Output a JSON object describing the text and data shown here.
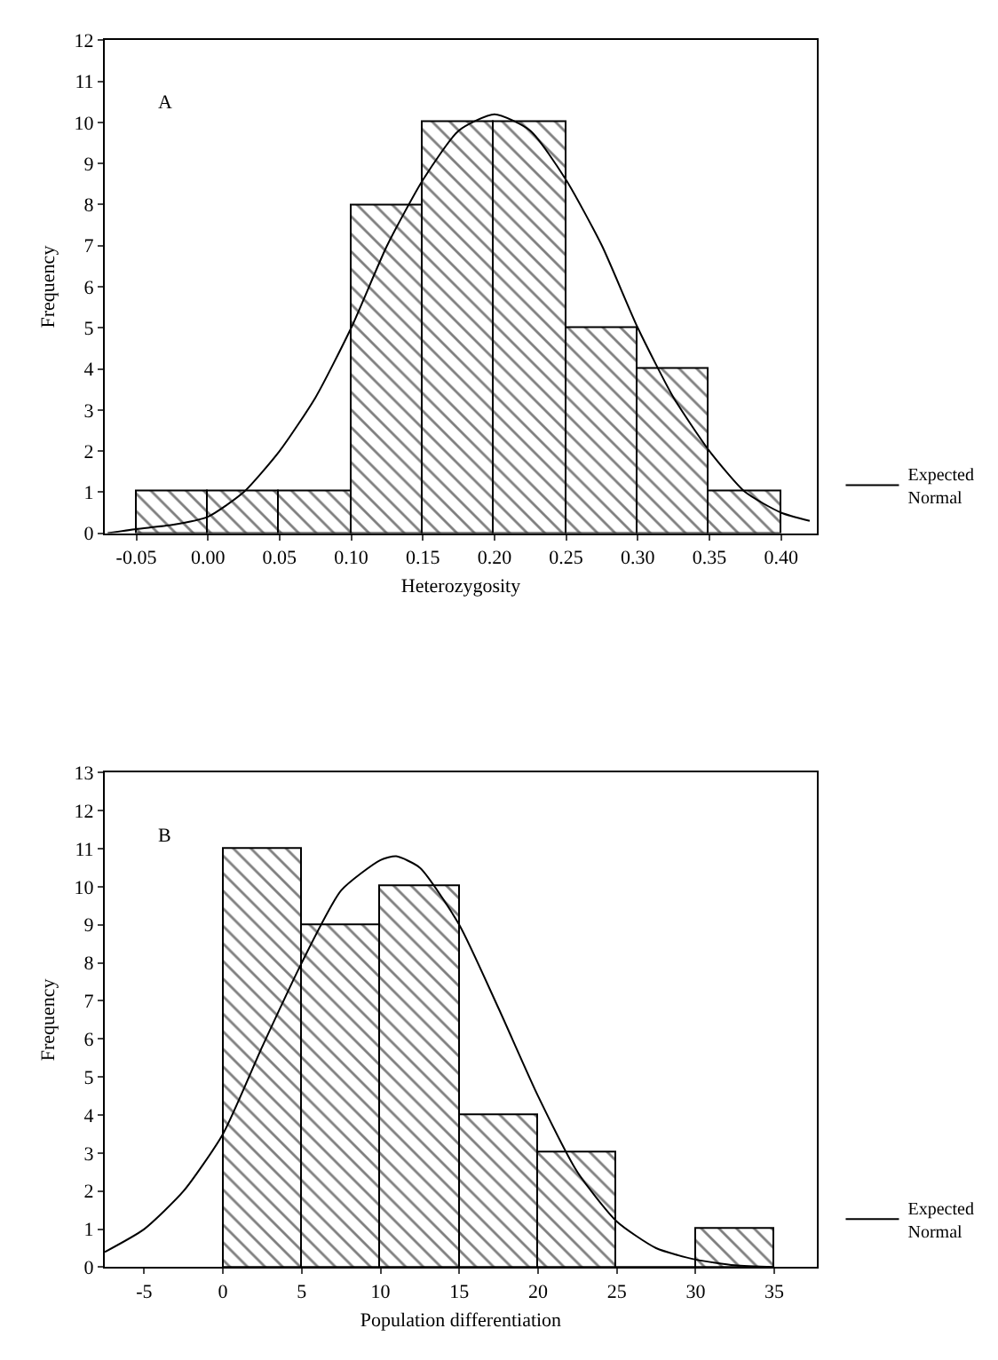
{
  "chart_data": [
    {
      "type": "histogram",
      "annotations": [
        "A"
      ],
      "xlabel": "Heterozygosity",
      "ylabel": "Frequency",
      "bins": [
        -0.05,
        0.0,
        0.05,
        0.1,
        0.15,
        0.2,
        0.25,
        0.3,
        0.35,
        0.4
      ],
      "values": [
        1,
        1,
        1,
        8,
        10,
        10,
        5,
        4,
        1
      ],
      "color": "#000000",
      "series": [
        {
          "name": "Expected Normal",
          "type": "line",
          "color": "#000000",
          "x": [
            -0.07,
            -0.05,
            -0.025,
            0.0,
            0.025,
            0.05,
            0.075,
            0.1,
            0.125,
            0.15,
            0.175,
            0.2,
            0.225,
            0.25,
            0.275,
            0.3,
            0.325,
            0.35,
            0.375,
            0.4,
            0.42
          ],
          "values": [
            0.0,
            0.1,
            0.2,
            0.4,
            1.0,
            2.0,
            3.3,
            5.0,
            7.0,
            8.6,
            9.8,
            10.2,
            9.8,
            8.6,
            7.0,
            5.0,
            3.3,
            2.0,
            1.0,
            0.5,
            0.3
          ]
        }
      ],
      "xlim": [
        -0.072,
        0.425
      ],
      "ylim": [
        0,
        12
      ],
      "xticks": [
        {
          "value": -0.05,
          "label": "-0.05"
        },
        {
          "value": 0.0,
          "label": "0.00"
        },
        {
          "value": 0.05,
          "label": "0.05"
        },
        {
          "value": 0.1,
          "label": "0.10"
        },
        {
          "value": 0.15,
          "label": "0.15"
        },
        {
          "value": 0.2,
          "label": "0.20"
        },
        {
          "value": 0.25,
          "label": "0.25"
        },
        {
          "value": 0.3,
          "label": "0.30"
        },
        {
          "value": 0.35,
          "label": "0.35"
        },
        {
          "value": 0.4,
          "label": "0.40"
        }
      ],
      "yticks": [
        0,
        1,
        2,
        3,
        4,
        5,
        6,
        7,
        8,
        9,
        10,
        11,
        12
      ],
      "legend": "bottom right"
    },
    {
      "type": "histogram",
      "annotations": [
        "B"
      ],
      "xlabel": "Population differentiation",
      "ylabel": "Frequency",
      "bins": [
        0,
        5,
        10,
        15,
        20,
        25,
        30,
        35
      ],
      "values": [
        11,
        9,
        10,
        4,
        3,
        0,
        1
      ],
      "color": "#000000",
      "series": [
        {
          "name": "Expected Normal",
          "type": "line",
          "color": "#000000",
          "x": [
            -7.5,
            -5,
            -2.5,
            0,
            2.5,
            5,
            7.5,
            10,
            11,
            12.5,
            15,
            17.5,
            20,
            22.5,
            25,
            27.5,
            30,
            32.5,
            35
          ],
          "values": [
            0.4,
            1.0,
            2.0,
            3.5,
            5.8,
            8.0,
            9.9,
            10.7,
            10.8,
            10.5,
            9.0,
            6.8,
            4.5,
            2.5,
            1.2,
            0.5,
            0.2,
            0.05,
            0.0
          ]
        }
      ],
      "xlim": [
        -7.5,
        37.7
      ],
      "ylim": [
        0,
        13
      ],
      "xticks": [
        -5,
        0,
        5,
        10,
        15,
        20,
        25,
        30,
        35
      ],
      "yticks": [
        0,
        1,
        2,
        3,
        4,
        5,
        6,
        7,
        8,
        9,
        10,
        11,
        12,
        13
      ],
      "legend": "bottom right"
    }
  ]
}
